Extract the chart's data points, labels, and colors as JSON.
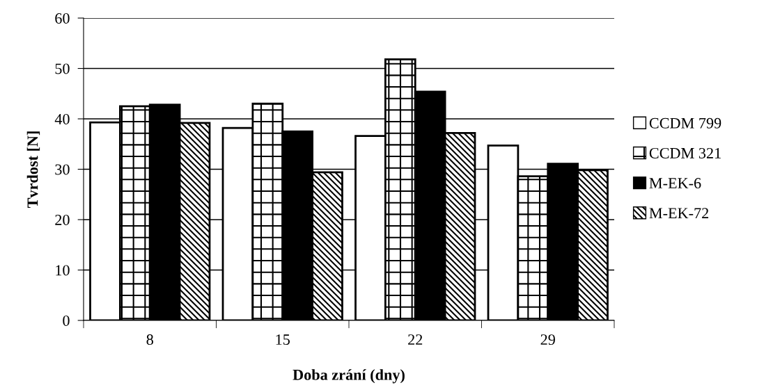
{
  "chart_data": {
    "type": "bar",
    "xlabel": "Doba zrání (dny)",
    "ylabel": "Tvrdost [N]",
    "categories": [
      "8",
      "15",
      "22",
      "29"
    ],
    "series": [
      {
        "name": "CCDM 799",
        "color": "#ffffff",
        "values": [
          39.3,
          38.2,
          36.6,
          34.7
        ]
      },
      {
        "name": "CCDM 321",
        "color": "#000000",
        "values": [
          42.5,
          43.0,
          51.8,
          28.6
        ]
      },
      {
        "name": "M-EK-6",
        "color": "#000000",
        "values": [
          42.8,
          37.5,
          45.4,
          31.1
        ]
      },
      {
        "name": "M-EK-72",
        "color": "#000000",
        "values": [
          39.2,
          29.4,
          37.2,
          29.8
        ]
      }
    ],
    "ylim": [
      0,
      60
    ],
    "yticks": [
      0,
      10,
      20,
      30,
      40,
      50,
      60
    ],
    "grid": "y",
    "legend": "right"
  }
}
